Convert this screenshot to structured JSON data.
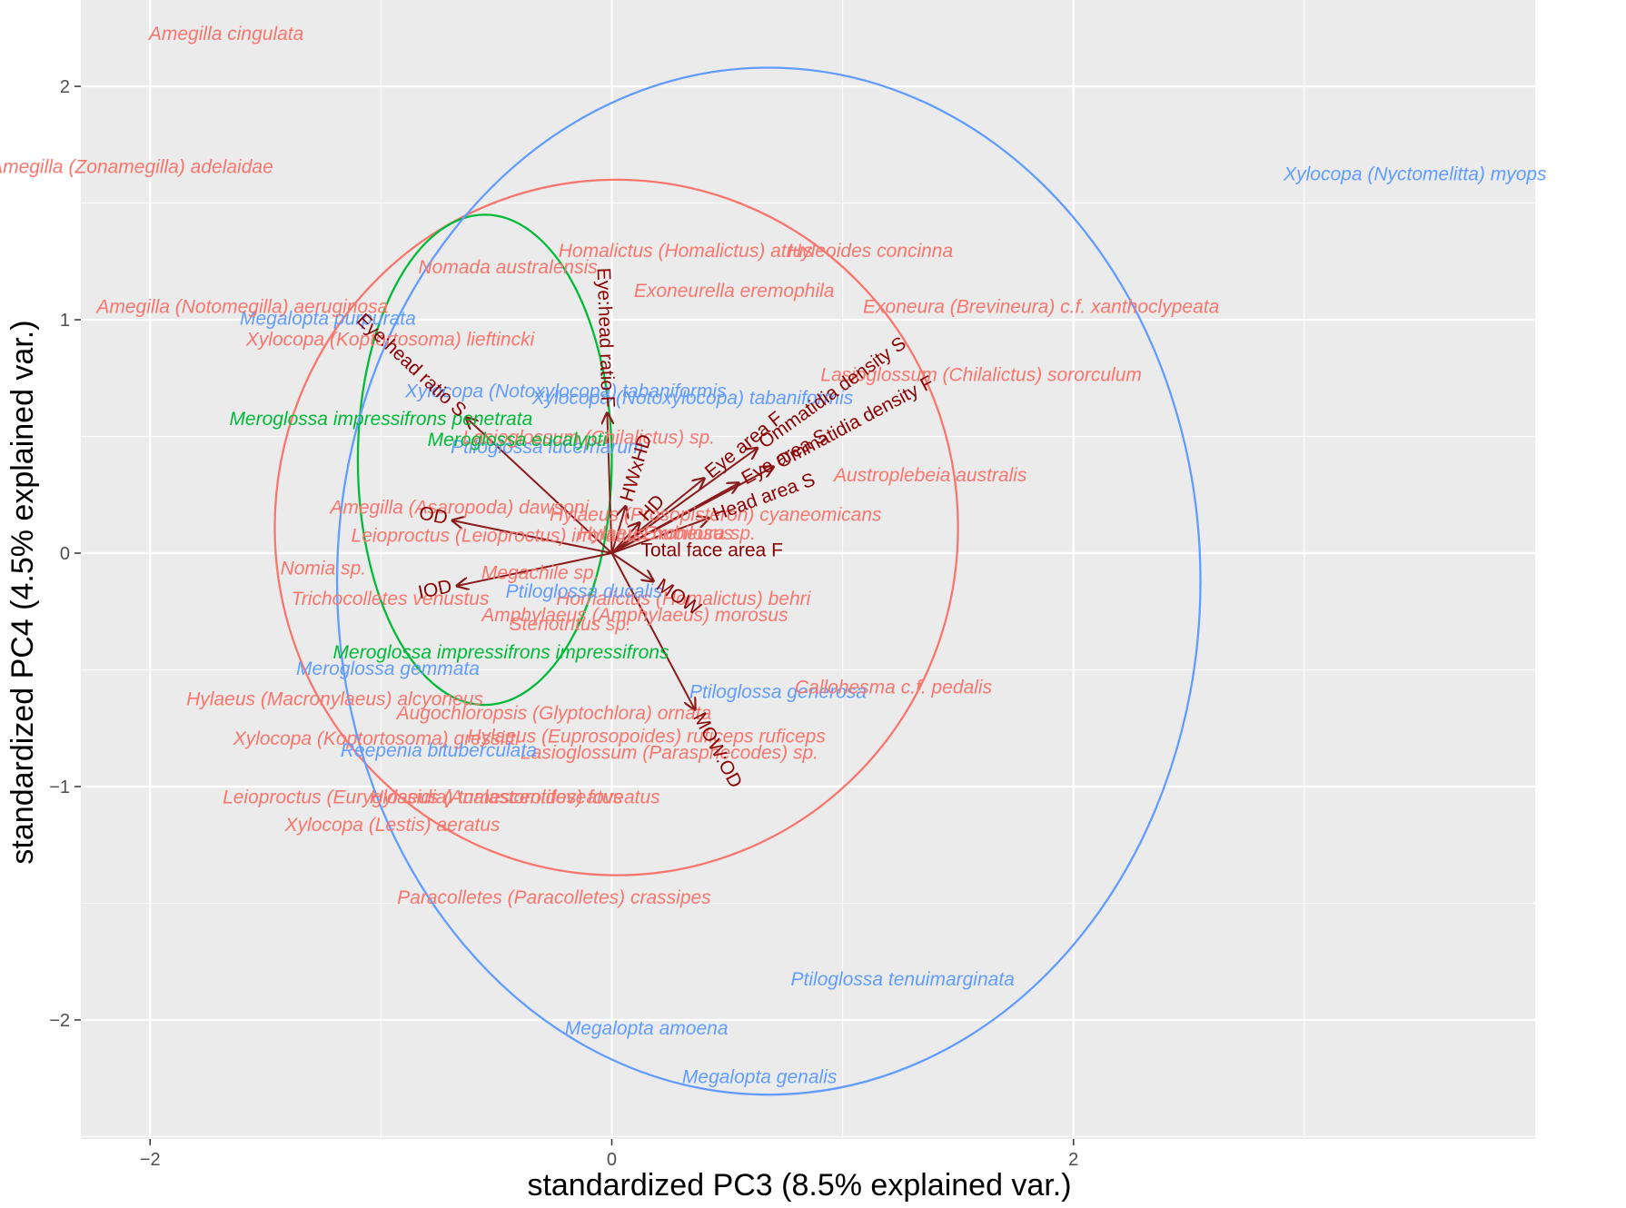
{
  "chart_data": {
    "type": "scatter",
    "title": "",
    "xlabel": "standardized PC3 (8.5% explained var.)",
    "ylabel": "standardized PC4 (4.5% explained var.)",
    "xlim": [
      -2.3,
      4.0
    ],
    "ylim": [
      2.37,
      -2.51
    ],
    "y_reversed": true,
    "grid": true,
    "x_ticks": [
      {
        "value": -2,
        "label": "−2"
      },
      {
        "value": 0,
        "label": "0"
      },
      {
        "value": 2,
        "label": "2"
      }
    ],
    "y_ticks": [
      {
        "value": -2,
        "label": "−2"
      },
      {
        "value": -1,
        "label": "−1"
      },
      {
        "value": 0,
        "label": "0"
      },
      {
        "value": 1,
        "label": "1"
      },
      {
        "value": 2,
        "label": "2"
      }
    ],
    "groups": [
      {
        "color": "#f8766d"
      },
      {
        "color": "#00ba38"
      },
      {
        "color": "#619cff"
      }
    ],
    "ellipses": [
      {
        "group": 0,
        "cx": 0.02,
        "cy": 0.11,
        "rx": 1.48,
        "ry": 1.49
      },
      {
        "group": 1,
        "cx": -0.55,
        "cy": 0.4,
        "rx": 0.55,
        "ry": 1.05
      },
      {
        "group": 2,
        "cx": 0.68,
        "cy": -0.12,
        "rx": 1.87,
        "ry": 2.2
      }
    ],
    "points": [
      {
        "label": "Megalopta genalis",
        "x": 0.64,
        "y": -2.25,
        "group": 2
      },
      {
        "label": "Megalopta amoena",
        "x": 0.15,
        "y": -2.04,
        "group": 2
      },
      {
        "label": "Ptiloglossa tenuimarginata",
        "x": 1.26,
        "y": -1.83,
        "group": 2
      },
      {
        "label": "Paracolletes (Paracolletes) crassipes",
        "x": -0.25,
        "y": -1.48,
        "group": 0
      },
      {
        "label": "Xylocopa (Lestis) aeratus",
        "x": -0.95,
        "y": -1.17,
        "group": 0
      },
      {
        "label": "Leioproctus (Euryglossidia) tumescentifoveatus",
        "x": -0.82,
        "y": -1.05,
        "group": 0
      },
      {
        "label": "Hylaeus (Analastoroides) foveatus",
        "x": -0.42,
        "y": -1.05,
        "group": 0
      },
      {
        "label": "Lasioglossum (Parasphecodes) sp.",
        "x": 0.25,
        "y": -0.86,
        "group": 0
      },
      {
        "label": "Xylocopa (Koptortosoma) gressitti",
        "x": -1.02,
        "y": -0.8,
        "group": 0
      },
      {
        "label": "Reepenia bituberculata",
        "x": -0.75,
        "y": -0.85,
        "group": 2
      },
      {
        "label": "Hylaeus (Euprosopoides) ruficeps ruficeps",
        "x": 0.15,
        "y": -0.79,
        "group": 0
      },
      {
        "label": "Augochloropsis (Glyptochlora) ornata",
        "x": -0.25,
        "y": -0.69,
        "group": 0
      },
      {
        "label": "Hylaeus (Macronylaeus) alcyoneus",
        "x": -1.2,
        "y": -0.63,
        "group": 0
      },
      {
        "label": "Ptiloglossa generosa",
        "x": 0.72,
        "y": -0.6,
        "group": 2
      },
      {
        "label": "Callohesma c.f. pedalis",
        "x": 1.22,
        "y": -0.58,
        "group": 0
      },
      {
        "label": "Meroglossa gemmata",
        "x": -0.97,
        "y": -0.5,
        "group": 2
      },
      {
        "label": "Meroglossa impressifrons impressifrons",
        "x": -0.48,
        "y": -0.43,
        "group": 1
      },
      {
        "label": "Stenotritus sp.",
        "x": -0.18,
        "y": -0.31,
        "group": 0
      },
      {
        "label": "Amphylaeus (Amphylaeus) morosus",
        "x": 0.1,
        "y": -0.27,
        "group": 0
      },
      {
        "label": "Trichocolletes venustus",
        "x": -0.96,
        "y": -0.2,
        "group": 0
      },
      {
        "label": "Homalictus (Homalictus) behri",
        "x": 0.31,
        "y": -0.2,
        "group": 0
      },
      {
        "label": "Ptiloglossa ducalis",
        "x": -0.12,
        "y": -0.17,
        "group": 2
      },
      {
        "label": "Megachile sp.",
        "x": -0.31,
        "y": -0.09,
        "group": 0
      },
      {
        "label": "Nomia sp.",
        "x": -1.25,
        "y": -0.07,
        "group": 0
      },
      {
        "label": "Leioproctus (Leioproctus) irroratus",
        "x": -0.5,
        "y": 0.07,
        "group": 0
      },
      {
        "label": "Hylaeus nubilosus",
        "x": 0.19,
        "y": 0.08,
        "group": 0
      },
      {
        "label": "Exoneura sp.",
        "x": 0.38,
        "y": 0.08,
        "group": 0
      },
      {
        "label": "Hylaeus (Prosopisteron) cyaneomicans",
        "x": 0.45,
        "y": 0.16,
        "group": 0
      },
      {
        "label": "Amegilla (Asaropoda) dawsoni",
        "x": -0.66,
        "y": 0.19,
        "group": 0
      },
      {
        "label": "Austroplebeia australis",
        "x": 1.38,
        "y": 0.33,
        "group": 0
      },
      {
        "label": "Ptiloglossa lucernarum",
        "x": -0.28,
        "y": 0.45,
        "group": 2
      },
      {
        "label": "Lasioglossum (Chilalictus) sp.",
        "x": -0.1,
        "y": 0.49,
        "group": 0
      },
      {
        "label": "Meroglossa eucalypti",
        "x": -0.41,
        "y": 0.48,
        "group": 1
      },
      {
        "label": "Meroglossa impressifrons penetrata",
        "x": -1.0,
        "y": 0.57,
        "group": 1
      },
      {
        "label": "Xylocopa (Notoxylocopa) tabaniformis",
        "x": 0.35,
        "y": 0.66,
        "group": 2
      },
      {
        "label": "Xylocopa (Notoxylocopa) tabaniformis",
        "x": -0.2,
        "y": 0.69,
        "group": 2
      },
      {
        "label": "Lasioglossum (Chilalictus) sororculum",
        "x": 1.6,
        "y": 0.76,
        "group": 0
      },
      {
        "label": "Xylocopa (Koptortosoma) lieftincki",
        "x": -0.96,
        "y": 0.91,
        "group": 0
      },
      {
        "label": "Megalopta purpurata",
        "x": -1.23,
        "y": 1.0,
        "group": 2
      },
      {
        "label": "Amegilla (Notomegilla) aeruginosa",
        "x": -1.6,
        "y": 1.05,
        "group": 0
      },
      {
        "label": "Exoneura (Brevineura) c.f. xanthoclypeata",
        "x": 1.86,
        "y": 1.05,
        "group": 0
      },
      {
        "label": "Exoneurella eremophila",
        "x": 0.53,
        "y": 1.12,
        "group": 0
      },
      {
        "label": "Nomada australensis",
        "x": -0.45,
        "y": 1.22,
        "group": 0
      },
      {
        "label": "Homalictus (Homalictus) atrus",
        "x": 0.32,
        "y": 1.29,
        "group": 0
      },
      {
        "label": "Hyleoides concinna",
        "x": 1.12,
        "y": 1.29,
        "group": 0
      },
      {
        "label": "Amegilla (Zonamegilla) adelaidae",
        "x": -2.08,
        "y": 1.65,
        "group": 0
      },
      {
        "label": "Xylocopa (Nyctomelitta) myops",
        "x": 3.48,
        "y": 1.62,
        "group": 2
      },
      {
        "label": "Amegilla cingulata",
        "x": -1.67,
        "y": 2.22,
        "group": 0
      }
    ],
    "loadings": [
      {
        "label": "MOW:OD",
        "x": 0.36,
        "y": -0.67
      },
      {
        "label": "MOW",
        "x": 0.18,
        "y": -0.12
      },
      {
        "label": "IOD",
        "x": -0.67,
        "y": -0.14
      },
      {
        "label": "Total face area F",
        "x": 0.0,
        "y": 0.0
      },
      {
        "label": "OD",
        "x": -0.69,
        "y": 0.14
      },
      {
        "label": "Head area S",
        "x": 0.42,
        "y": 0.15
      },
      {
        "label": "HD",
        "x": 0.12,
        "y": 0.13
      },
      {
        "label": "HWxHD",
        "x": 0.06,
        "y": 0.2
      },
      {
        "label": "Eye area S",
        "x": 0.55,
        "y": 0.3
      },
      {
        "label": "Eye area F",
        "x": 0.4,
        "y": 0.32
      },
      {
        "label": "Ommatidia density F",
        "x": 0.7,
        "y": 0.37
      },
      {
        "label": "Ommatidia density S",
        "x": 0.63,
        "y": 0.45
      },
      {
        "label": "Eye:head ratio S",
        "x": -0.63,
        "y": 0.58
      },
      {
        "label": "Eye:head ratio F",
        "x": -0.02,
        "y": 0.6
      }
    ]
  }
}
